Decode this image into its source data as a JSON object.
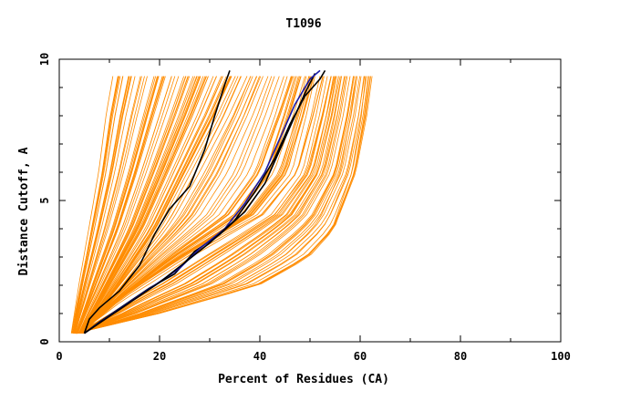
{
  "chart_data": {
    "type": "line",
    "title": "T1096",
    "xlabel": "Percent of Residues (CA)",
    "ylabel": "Distance Cutoff, A",
    "xlim": [
      0,
      100
    ],
    "ylim": [
      0,
      10
    ],
    "x_ticks": [
      "0",
      "20",
      "40",
      "60",
      "80",
      "100"
    ],
    "y_ticks": [
      "0",
      "5",
      "10"
    ],
    "grid": false,
    "colors": {
      "background_models": "#ff8c00",
      "highlight_dark": "#000000",
      "highlight_blue": "#1a1aa6"
    },
    "background_band_description_values": {
      "band_a_x_at_y": [
        [
          0.3,
          2.5
        ],
        [
          2,
          4
        ],
        [
          4,
          6
        ],
        [
          6,
          8
        ],
        [
          8,
          9.5
        ],
        [
          9.5,
          11
        ]
      ],
      "band_a_x_at_y_right": [
        [
          0.3,
          5
        ],
        [
          2,
          12
        ],
        [
          4,
          20
        ],
        [
          6,
          26
        ],
        [
          8,
          32
        ],
        [
          9.5,
          36
        ]
      ],
      "band_b_x_at_y": [
        [
          0.3,
          4
        ],
        [
          1.5,
          12
        ],
        [
          3,
          25
        ],
        [
          4.5,
          40
        ],
        [
          6,
          47
        ],
        [
          8,
          50
        ],
        [
          9.5,
          52
        ]
      ],
      "band_c_x_at_y": [
        [
          0.3,
          3
        ],
        [
          1,
          20
        ],
        [
          2,
          40
        ],
        [
          3,
          50
        ],
        [
          4,
          55
        ],
        [
          5,
          57
        ],
        [
          6,
          59
        ],
        [
          8,
          61
        ],
        [
          9.5,
          62
        ]
      ]
    },
    "series": [
      {
        "color": "#000000",
        "points": [
          [
            5,
            0.3
          ],
          [
            6,
            0.8
          ],
          [
            8,
            1.2
          ],
          [
            12,
            1.8
          ],
          [
            16,
            2.7
          ],
          [
            19,
            3.8
          ],
          [
            22,
            4.7
          ],
          [
            26,
            5.5
          ],
          [
            29,
            6.8
          ],
          [
            31,
            8.0
          ],
          [
            33,
            9.1
          ],
          [
            34,
            9.6
          ]
        ]
      },
      {
        "color": "#000000",
        "points": [
          [
            5,
            0.3
          ],
          [
            8,
            0.7
          ],
          [
            13,
            1.3
          ],
          [
            18,
            1.9
          ],
          [
            23,
            2.4
          ],
          [
            27,
            3.2
          ],
          [
            32,
            3.8
          ],
          [
            37,
            4.6
          ],
          [
            41,
            5.6
          ],
          [
            44,
            6.8
          ],
          [
            47,
            8.0
          ],
          [
            49,
            8.8
          ],
          [
            51,
            9.5
          ]
        ]
      },
      {
        "color": "#1a1aa6",
        "points": [
          [
            5,
            0.3
          ],
          [
            9,
            0.8
          ],
          [
            14,
            1.4
          ],
          [
            19,
            2.0
          ],
          [
            24,
            2.6
          ],
          [
            28,
            3.3
          ],
          [
            33,
            4.0
          ],
          [
            37,
            4.9
          ],
          [
            41,
            6.0
          ],
          [
            44,
            7.2
          ],
          [
            47,
            8.4
          ],
          [
            50,
            9.3
          ],
          [
            52,
            9.6
          ]
        ]
      },
      {
        "color": "#000000",
        "points": [
          [
            5,
            0.3
          ],
          [
            10,
            0.9
          ],
          [
            15,
            1.5
          ],
          [
            20,
            2.1
          ],
          [
            25,
            2.8
          ],
          [
            30,
            3.5
          ],
          [
            35,
            4.3
          ],
          [
            39,
            5.3
          ],
          [
            43,
            6.5
          ],
          [
            46,
            7.7
          ],
          [
            49,
            8.7
          ],
          [
            52,
            9.3
          ],
          [
            53,
            9.6
          ]
        ]
      }
    ]
  }
}
